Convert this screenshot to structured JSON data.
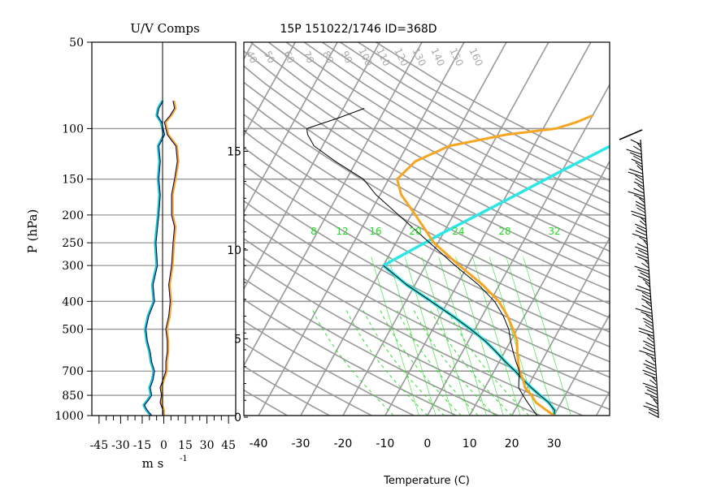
{
  "chart_data": [
    {
      "type": "line",
      "title": "U/V Comps",
      "xlabel": "m s",
      "xlabel_exponent": "-1",
      "ylabel": "P (hPa)",
      "xlim": [
        -50,
        50
      ],
      "ylim": [
        1000,
        50
      ],
      "y_scale": "log",
      "x_ticks": [
        "-45",
        "-30",
        "-15",
        "0",
        "15",
        "30",
        "45"
      ],
      "y_ticks": [
        "50",
        "100",
        "150",
        "200",
        "250",
        "300",
        "400",
        "500",
        "700",
        "850",
        "1000"
      ],
      "y_tick_values": [
        50,
        100,
        150,
        200,
        250,
        300,
        400,
        500,
        700,
        850,
        1000
      ],
      "grid": true,
      "colors": {
        "u": "#f5a623",
        "v": "#18c6c6",
        "dark": "#000066"
      },
      "series": [
        {
          "points": [
            [
              0,
              1000
            ],
            [
              0,
              960
            ],
            [
              -2,
              900
            ],
            [
              -1,
              850
            ],
            [
              -2,
              800
            ],
            [
              0,
              750
            ],
            [
              2,
              700
            ],
            [
              2,
              650
            ],
            [
              3,
              600
            ],
            [
              3,
              550
            ],
            [
              2,
              500
            ],
            [
              4,
              450
            ],
            [
              5,
              400
            ],
            [
              4,
              350
            ],
            [
              6,
              300
            ],
            [
              7,
              250
            ],
            [
              8,
              220
            ],
            [
              6,
              200
            ],
            [
              6,
              170
            ],
            [
              8,
              150
            ],
            [
              10,
              130
            ],
            [
              9,
              115
            ],
            [
              3,
              105
            ],
            [
              1,
              95
            ],
            [
              5,
              90
            ],
            [
              8,
              85
            ],
            [
              7,
              80
            ]
          ]
        },
        {
          "points": [
            [
              -9,
              1000
            ],
            [
              -12,
              960
            ],
            [
              -14,
              920
            ],
            [
              -11,
              880
            ],
            [
              -9,
              850
            ],
            [
              -10,
              800
            ],
            [
              -8,
              750
            ],
            [
              -7,
              700
            ],
            [
              -9,
              650
            ],
            [
              -10,
              600
            ],
            [
              -12,
              550
            ],
            [
              -13,
              500
            ],
            [
              -11,
              450
            ],
            [
              -7,
              400
            ],
            [
              -8,
              350
            ],
            [
              -5,
              300
            ],
            [
              -6,
              250
            ],
            [
              -4,
              200
            ],
            [
              -3,
              170
            ],
            [
              -4,
              150
            ],
            [
              -3,
              130
            ],
            [
              -4,
              115
            ],
            [
              0,
              105
            ],
            [
              -2,
              95
            ],
            [
              -5,
              90
            ],
            [
              -4,
              85
            ],
            [
              -1,
              80
            ]
          ]
        }
      ]
    },
    {
      "type": "line",
      "title": "15P 151022/1746 ID=368D",
      "xlabel": "Temperature (C)",
      "xlim": [
        -42,
        42
      ],
      "y_scale": "log",
      "x_ticks": [
        "-40",
        "-30",
        "-20",
        "-10",
        "0",
        "10",
        "20",
        "30"
      ],
      "x_tick_values": [
        -40,
        -30,
        -20,
        -10,
        0,
        10,
        20,
        30
      ],
      "height_ticks": [
        "0",
        "5",
        "10",
        "15"
      ],
      "height_tick_pressures": [
        1013,
        540,
        265,
        120
      ],
      "mixing_ratio_labels": [
        "8",
        "12",
        "16",
        "20",
        "24",
        "28",
        "32"
      ],
      "dry_adiabat_labels": [
        "40",
        "50",
        "60",
        "70",
        "80",
        "90",
        "100",
        "110",
        "120",
        "130",
        "140",
        "150",
        "160"
      ],
      "colors": {
        "temperature": "#f5a623",
        "parcel": "#2ee6e6",
        "grid": "#999999",
        "moist": "#33dd33"
      },
      "series": [
        {
          "points": [
            [
              30,
              1000
            ],
            [
              27,
              950
            ],
            [
              24,
              900
            ],
            [
              22,
              850
            ],
            [
              19.5,
              800
            ],
            [
              18,
              750
            ],
            [
              16,
              700
            ],
            [
              14.5,
              650
            ],
            [
              13,
              600
            ],
            [
              11.5,
              550
            ],
            [
              9,
              500
            ],
            [
              6,
              450
            ],
            [
              2,
              400
            ],
            [
              -4,
              350
            ],
            [
              -12,
              300
            ],
            [
              -21,
              250
            ],
            [
              -29,
              200
            ],
            [
              -35,
              170
            ],
            [
              -38,
              150
            ],
            [
              -36,
              130
            ],
            [
              -30,
              115
            ],
            [
              -18,
              105
            ],
            [
              -7,
              100
            ],
            [
              -3,
              95
            ],
            [
              0,
              90
            ]
          ]
        },
        {
          "points": [
            [
              26,
              1000
            ],
            [
              24,
              950
            ],
            [
              22,
              900
            ],
            [
              20,
              850
            ],
            [
              18,
              800
            ],
            [
              17,
              750
            ],
            [
              16,
              700
            ],
            [
              14,
              650
            ],
            [
              12,
              600
            ],
            [
              10,
              550
            ],
            [
              8,
              500
            ],
            [
              5,
              450
            ],
            [
              1,
              400
            ],
            [
              -5,
              350
            ],
            [
              -13,
              300
            ],
            [
              -22,
              250
            ],
            [
              -33,
              200
            ],
            [
              -41,
              170
            ],
            [
              -46,
              150
            ],
            [
              -55,
              130
            ],
            [
              -62,
              115
            ],
            [
              -65,
              105
            ],
            [
              -66,
              100
            ],
            [
              -60,
              92
            ],
            [
              -55,
              85
            ]
          ]
        },
        {
          "points": [
            [
              30,
              1000
            ],
            [
              29.5,
              960
            ],
            [
              27,
              900
            ],
            [
              24,
              850
            ],
            [
              21,
              800
            ],
            [
              18,
              750
            ],
            [
              15,
              700
            ],
            [
              11.5,
              650
            ],
            [
              8,
              600
            ],
            [
              4,
              550
            ],
            [
              -1,
              500
            ],
            [
              -7,
              450
            ],
            [
              -14,
              400
            ],
            [
              -22,
              350
            ],
            [
              -30,
              300
            ]
          ]
        },
        {
          "points": [
            [
              -30,
              300
            ],
            [
              -20,
              230
            ],
            [
              -10,
              180
            ],
            [
              0,
              140
            ],
            [
              10,
              110
            ],
            [
              20,
              85
            ]
          ]
        }
      ]
    }
  ]
}
